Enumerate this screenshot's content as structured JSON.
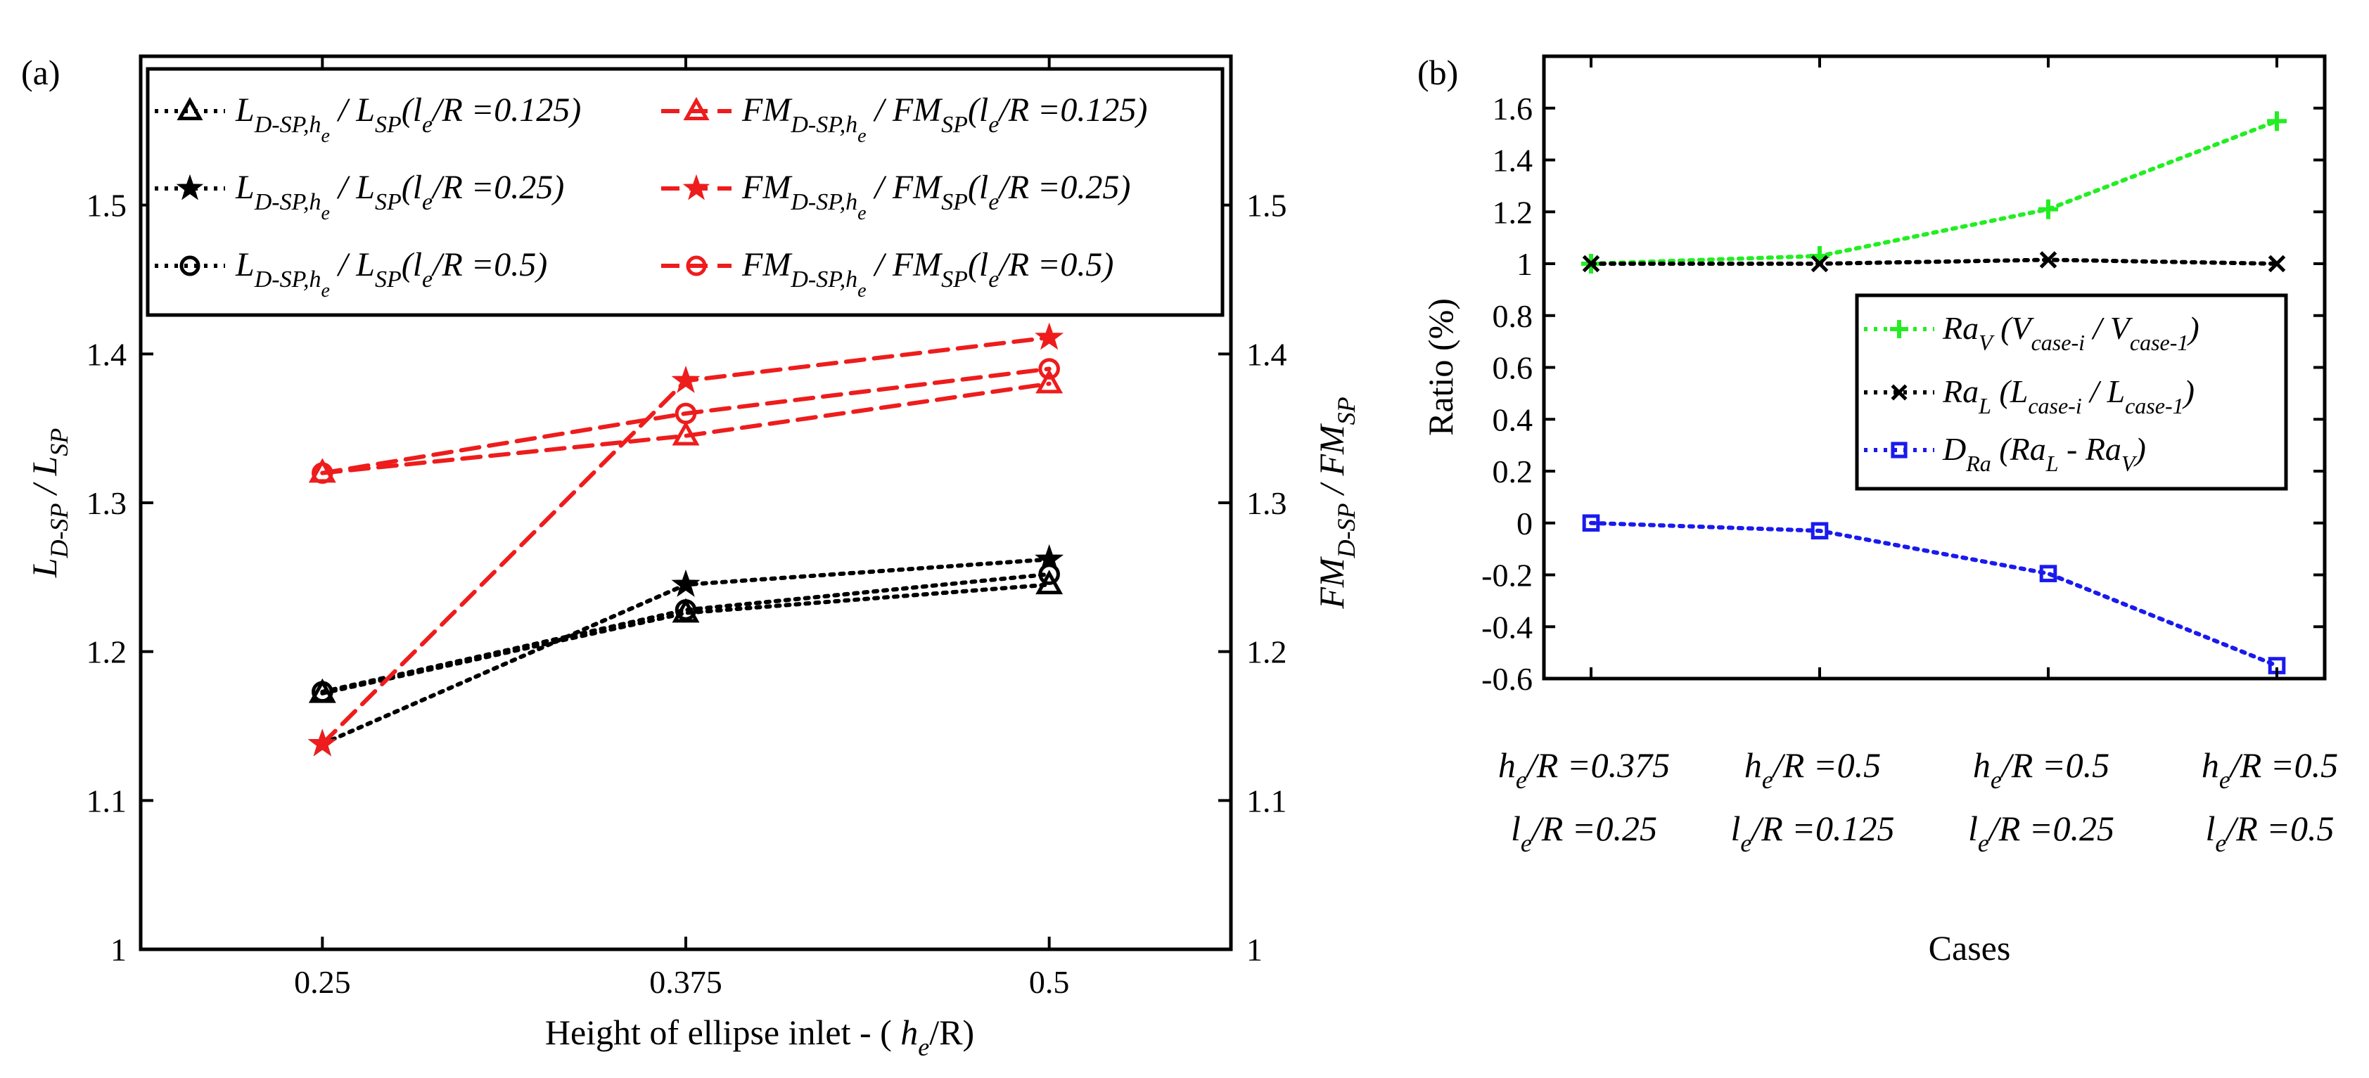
{
  "chart_data": [
    {
      "panel_label": "(a)",
      "type": "line",
      "x": [
        0.25,
        0.375,
        0.5
      ],
      "x_tick_labels": [
        "0.25",
        "0.375",
        "0.5"
      ],
      "xlabel": {
        "prefix": "Height of ellipse inlet - ( ",
        "main": "h",
        "sub": "e",
        "suffix": "/R)"
      },
      "ylabel_left": {
        "main": "L",
        "sub": "D-SP",
        "mid": " / L",
        "sub2": "SP"
      },
      "ylabel_right": {
        "main": "FM",
        "sub": "D-SP",
        "mid": " / FM",
        "sub2": "SP"
      },
      "ylim": [
        1,
        1.6
      ],
      "yticks": [
        1,
        1.1,
        1.2,
        1.3,
        1.4,
        1.5
      ],
      "y_tick_labels": [
        "1",
        "1.1",
        "1.2",
        "1.3",
        "1.4",
        "1.5"
      ],
      "grid": false,
      "legend_position": "top",
      "series": [
        {
          "name": "L_D-SP,he / L_SP(le/R=0.125)",
          "legend": {
            "a": "L",
            "sub1": "D-SP,h",
            "subsub": "e",
            "b": " / L",
            "sub2": "SP",
            "c": "(l",
            "sub3": "e",
            "d": "/R =0.125)"
          },
          "values": [
            1.172,
            1.226,
            1.245
          ],
          "color": "#000000",
          "dash": "dotted",
          "marker": "triangle-open"
        },
        {
          "name": "L_D-SP,he / L_SP(le/R=0.25)",
          "legend": {
            "a": "L",
            "sub1": "D-SP,h",
            "subsub": "e",
            "b": " / L",
            "sub2": "SP",
            "c": "(l",
            "sub3": "e",
            "d": "/R =0.25)"
          },
          "values": [
            1.138,
            1.245,
            1.262
          ],
          "color": "#000000",
          "dash": "dotted",
          "marker": "star-filled"
        },
        {
          "name": "L_D-SP,he / L_SP(le/R=0.5)",
          "legend": {
            "a": "L",
            "sub1": "D-SP,h",
            "subsub": "e",
            "b": " / L",
            "sub2": "SP",
            "c": "(l",
            "sub3": "e",
            "d": "/R =0.5)"
          },
          "values": [
            1.173,
            1.228,
            1.252
          ],
          "color": "#000000",
          "dash": "dotted",
          "marker": "circle-open"
        },
        {
          "name": "FM_D-SP,he / FM_SP(le/R=0.125)",
          "legend": {
            "a": "FM",
            "sub1": "D-SP,h",
            "subsub": "e",
            "b": " / FM",
            "sub2": "SP",
            "c": "(l",
            "sub3": "e",
            "d": "/R =0.125)"
          },
          "values": [
            1.32,
            1.345,
            1.38
          ],
          "color": "#ee1c1c",
          "dash": "dashed",
          "marker": "triangle-open"
        },
        {
          "name": "FM_D-SP,he / FM_SP(le/R=0.25)",
          "legend": {
            "a": "FM",
            "sub1": "D-SP,h",
            "subsub": "e",
            "b": " / FM",
            "sub2": "SP",
            "c": "(l",
            "sub3": "e",
            "d": "/R =0.25)"
          },
          "values": [
            1.138,
            1.382,
            1.411
          ],
          "color": "#ee1c1c",
          "dash": "dashed",
          "marker": "star-filled"
        },
        {
          "name": "FM_D-SP,he / FM_SP(le/R=0.5)",
          "legend": {
            "a": "FM",
            "sub1": "D-SP,h",
            "subsub": "e",
            "b": " / FM",
            "sub2": "SP",
            "c": "(l",
            "sub3": "e",
            "d": "/R =0.5)"
          },
          "values": [
            1.32,
            1.36,
            1.39
          ],
          "color": "#ee1c1c",
          "dash": "dashed",
          "marker": "circle-open"
        }
      ]
    },
    {
      "panel_label": "(b)",
      "type": "line",
      "categories": [
        "case-1",
        "case-2",
        "case-3",
        "case-4"
      ],
      "category_labels": [
        {
          "line1_main": "h",
          "line1_sub": "e",
          "line1_rest": "/R =0.375",
          "line2_main": "l",
          "line2_sub": "e",
          "line2_rest": "/R =0.25"
        },
        {
          "line1_main": "h",
          "line1_sub": "e",
          "line1_rest": "/R =0.5",
          "line2_main": "l",
          "line2_sub": "e",
          "line2_rest": "/R =0.125"
        },
        {
          "line1_main": "h",
          "line1_sub": "e",
          "line1_rest": "/R =0.5",
          "line2_main": "l",
          "line2_sub": "e",
          "line2_rest": "/R =0.25"
        },
        {
          "line1_main": "h",
          "line1_sub": "e",
          "line1_rest": "/R =0.5",
          "line2_main": "l",
          "line2_sub": "e",
          "line2_rest": "/R =0.5"
        }
      ],
      "xlabel": "Cases",
      "ylabel": "Ratio (%)",
      "ylim": [
        -0.6,
        1.8
      ],
      "yticks": [
        -0.6,
        -0.4,
        -0.2,
        0,
        0.2,
        0.4,
        0.6,
        0.8,
        1,
        1.2,
        1.4,
        1.6
      ],
      "y_tick_labels": [
        "-0.6",
        "-0.4",
        "-0.2",
        "0",
        "0.2",
        "0.4",
        "0.6",
        "0.8",
        "1",
        "1.2",
        "1.4",
        "1.6"
      ],
      "grid": false,
      "legend_position": "right",
      "series": [
        {
          "name": "Ra_V (V_case-i / V_case-1)",
          "legend": {
            "a": "Ra",
            "sub1": "V",
            "b": " (V",
            "sub2": "case-i",
            "c": " / V",
            "sub3": "case-1",
            "d": ")"
          },
          "values": [
            1.0,
            1.03,
            1.21,
            1.55
          ],
          "color": "#22ee22",
          "dash": "dotted",
          "marker": "plus"
        },
        {
          "name": "Ra_L (L_case-i / L_case-1)",
          "legend": {
            "a": "Ra",
            "sub1": "L",
            "b": " (L",
            "sub2": "case-i",
            "c": " / L",
            "sub3": "case-1",
            "d": ")"
          },
          "values": [
            1.0,
            1.0,
            1.015,
            1.0
          ],
          "color": "#000000",
          "dash": "dotted",
          "marker": "x"
        },
        {
          "name": "D_Ra (Ra_L - Ra_V)",
          "legend": {
            "a": "D",
            "sub1": "Ra",
            "b": " (Ra",
            "sub2": "L",
            "c": " - Ra",
            "sub3": "V",
            "d": ")"
          },
          "values": [
            0.0,
            -0.03,
            -0.195,
            -0.55
          ],
          "color": "#1a1aee",
          "dash": "dotted",
          "marker": "square-open"
        }
      ]
    }
  ]
}
